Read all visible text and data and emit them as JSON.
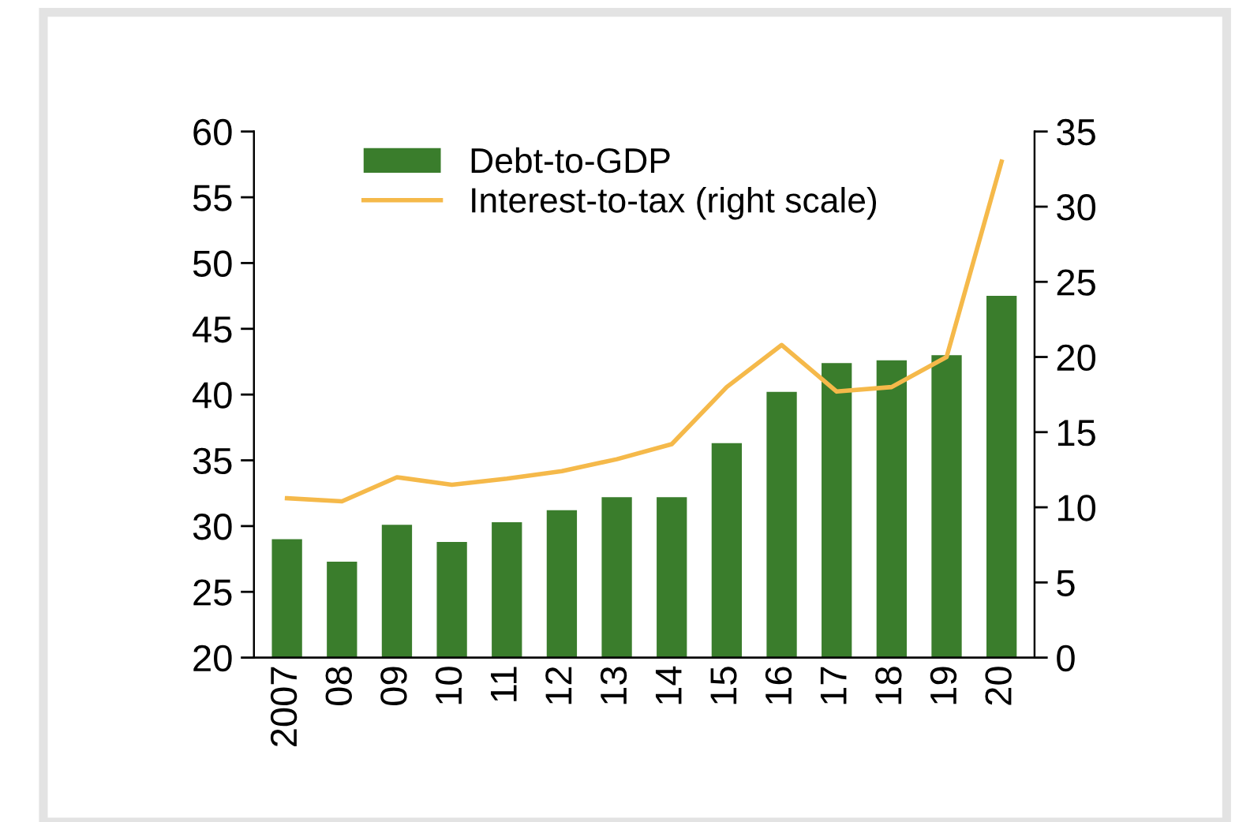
{
  "chart_data": {
    "type": "bar",
    "categories": [
      "2007",
      "08",
      "09",
      "10",
      "11",
      "12",
      "13",
      "14",
      "15",
      "16",
      "17",
      "18",
      "19",
      "20"
    ],
    "series": [
      {
        "name": "Debt-to-GDP",
        "color": "#3a7d2c",
        "values": [
          29.0,
          27.3,
          30.1,
          28.8,
          30.3,
          31.2,
          32.2,
          32.2,
          36.3,
          40.2,
          42.4,
          42.6,
          43.0,
          47.5
        ]
      },
      {
        "name": "Interest-to-tax (right scale)",
        "type": "line",
        "axis": "y2",
        "color": "#f5b94a",
        "values": [
          10.6,
          10.4,
          12.0,
          11.5,
          11.9,
          12.4,
          13.2,
          14.2,
          18.0,
          20.8,
          17.7,
          18.0,
          20.0,
          33.0
        ]
      }
    ],
    "ylim": [
      20,
      60
    ],
    "yticks": [
      20,
      25,
      30,
      35,
      40,
      45,
      50,
      55,
      60
    ],
    "y2lim": [
      0,
      35
    ],
    "y2ticks": [
      0,
      5,
      10,
      15,
      20,
      25,
      30,
      35
    ],
    "grid": false,
    "legend": "top left",
    "marker": "none",
    "line_style": "solid"
  }
}
